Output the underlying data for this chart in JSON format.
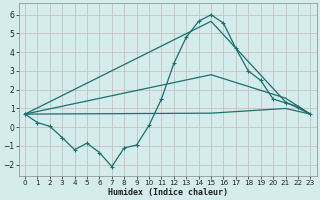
{
  "xlabel": "Humidex (Indice chaleur)",
  "bg_color": "#d4ecec",
  "grid_color": "#c8b8b8",
  "line_color": "#1a7070",
  "xlim": [
    -0.5,
    23.5
  ],
  "ylim": [
    -2.6,
    6.6
  ],
  "yticks": [
    -2,
    -1,
    0,
    1,
    2,
    3,
    4,
    5,
    6
  ],
  "xticks": [
    0,
    1,
    2,
    3,
    4,
    5,
    6,
    7,
    8,
    9,
    10,
    11,
    12,
    13,
    14,
    15,
    16,
    17,
    18,
    19,
    20,
    21,
    22,
    23
  ],
  "line1_x": [
    0,
    1,
    2,
    3,
    4,
    5,
    6,
    7,
    8,
    9,
    10,
    11,
    12,
    13,
    14,
    15,
    16,
    17,
    18,
    19,
    20,
    21,
    22,
    23
  ],
  "line1_y": [
    0.7,
    0.25,
    0.05,
    -0.55,
    -1.2,
    -0.85,
    -1.35,
    -2.1,
    -1.1,
    -0.95,
    0.1,
    1.5,
    3.4,
    4.8,
    5.65,
    6.0,
    5.55,
    4.2,
    3.0,
    2.5,
    1.5,
    1.3,
    1.1,
    0.7
  ],
  "line2_x": [
    0,
    15,
    21,
    23
  ],
  "line2_y": [
    0.7,
    5.65,
    1.35,
    0.7
  ],
  "line3_x": [
    0,
    15,
    21,
    23
  ],
  "line3_y": [
    0.7,
    2.8,
    1.55,
    0.7
  ],
  "line4_x": [
    0,
    15,
    21,
    23
  ],
  "line4_y": [
    0.7,
    0.75,
    1.0,
    0.7
  ]
}
